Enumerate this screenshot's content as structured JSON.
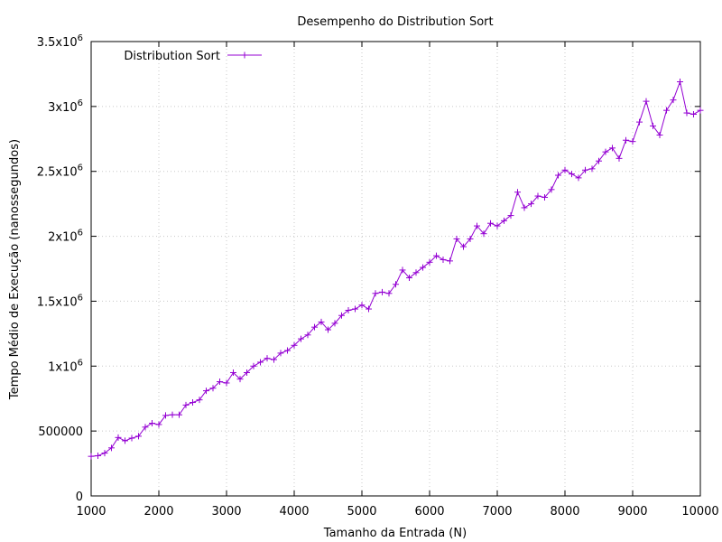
{
  "chart_data": {
    "type": "line",
    "title": "Desempenho do Distribution Sort",
    "xlabel": "Tamanho da Entrada (N)",
    "ylabel": "Tempo Médio de Execução (nanossegundos)",
    "xlim": [
      1000,
      10000
    ],
    "ylim": [
      0,
      3500000
    ],
    "grid": true,
    "legend_position": "top-left",
    "x_ticks": [
      {
        "value": 1000,
        "label": "1000"
      },
      {
        "value": 2000,
        "label": "2000"
      },
      {
        "value": 3000,
        "label": "3000"
      },
      {
        "value": 4000,
        "label": "4000"
      },
      {
        "value": 5000,
        "label": "5000"
      },
      {
        "value": 6000,
        "label": "6000"
      },
      {
        "value": 7000,
        "label": "7000"
      },
      {
        "value": 8000,
        "label": "8000"
      },
      {
        "value": 9000,
        "label": "9000"
      },
      {
        "value": 10000,
        "label": "10000"
      }
    ],
    "y_ticks": [
      {
        "value": 0,
        "base": "0",
        "exp": ""
      },
      {
        "value": 500000,
        "base": "500000",
        "exp": ""
      },
      {
        "value": 1000000,
        "base": "1x10",
        "exp": "6"
      },
      {
        "value": 1500000,
        "base": "1.5x10",
        "exp": "6"
      },
      {
        "value": 2000000,
        "base": "2x10",
        "exp": "6"
      },
      {
        "value": 2500000,
        "base": "2.5x10",
        "exp": "6"
      },
      {
        "value": 3000000,
        "base": "3x10",
        "exp": "6"
      },
      {
        "value": 3500000,
        "base": "3.5x10",
        "exp": "6"
      }
    ],
    "series": [
      {
        "name": "Distribution Sort",
        "color": "#9400d3",
        "marker": "plus",
        "x": [
          1000,
          1100,
          1200,
          1300,
          1400,
          1500,
          1600,
          1700,
          1800,
          1900,
          2000,
          2100,
          2200,
          2300,
          2400,
          2500,
          2600,
          2700,
          2800,
          2900,
          3000,
          3100,
          3200,
          3300,
          3400,
          3500,
          3600,
          3700,
          3800,
          3900,
          4000,
          4100,
          4200,
          4300,
          4400,
          4500,
          4600,
          4700,
          4800,
          4900,
          5000,
          5100,
          5200,
          5300,
          5400,
          5500,
          5600,
          5700,
          5800,
          5900,
          6000,
          6100,
          6200,
          6300,
          6400,
          6500,
          6600,
          6700,
          6800,
          6900,
          7000,
          7100,
          7200,
          7300,
          7400,
          7500,
          7600,
          7700,
          7800,
          7900,
          8000,
          8100,
          8200,
          8300,
          8400,
          8500,
          8600,
          8700,
          8800,
          8900,
          9000,
          9100,
          9200,
          9300,
          9400,
          9500,
          9600,
          9700,
          9800,
          9900,
          10000
        ],
        "y": [
          305000,
          310000,
          330000,
          370000,
          450000,
          425000,
          445000,
          460000,
          530000,
          560000,
          550000,
          620000,
          625000,
          625000,
          700000,
          720000,
          740000,
          810000,
          830000,
          880000,
          870000,
          950000,
          900000,
          950000,
          1000000,
          1030000,
          1060000,
          1050000,
          1100000,
          1120000,
          1160000,
          1210000,
          1240000,
          1300000,
          1340000,
          1280000,
          1330000,
          1390000,
          1430000,
          1440000,
          1470000,
          1440000,
          1560000,
          1570000,
          1560000,
          1630000,
          1740000,
          1680000,
          1720000,
          1760000,
          1800000,
          1850000,
          1820000,
          1810000,
          1980000,
          1920000,
          1980000,
          2080000,
          2020000,
          2100000,
          2080000,
          2120000,
          2160000,
          2340000,
          2220000,
          2250000,
          2310000,
          2300000,
          2360000,
          2470000,
          2510000,
          2480000,
          2450000,
          2510000,
          2520000,
          2580000,
          2650000,
          2680000,
          2600000,
          2740000,
          2730000,
          2880000,
          3040000,
          2850000,
          2780000,
          2970000,
          3050000,
          3190000,
          2950000,
          2940000,
          2970000
        ]
      }
    ]
  }
}
